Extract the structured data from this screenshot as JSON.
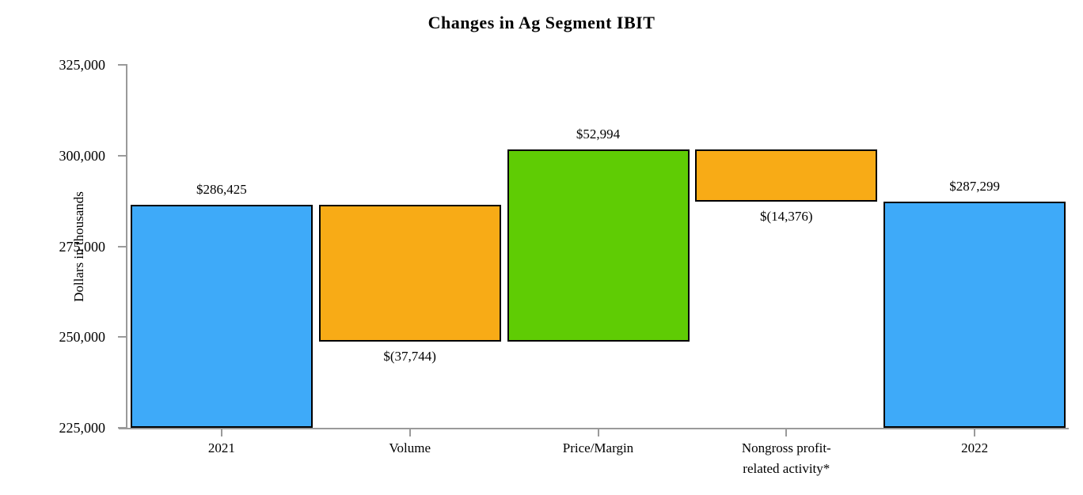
{
  "chart_data": {
    "type": "bar",
    "subtype": "waterfall",
    "title": "Changes in Ag Segment IBIT",
    "ylabel": "Dollars in thousands",
    "xlabel": "",
    "ylim": [
      225000,
      325000
    ],
    "grid": false,
    "legend": null,
    "axis_color": "#9a9a9a",
    "bar_border_color": "#000000",
    "yticks": [
      {
        "value": 225000,
        "label": "225,000"
      },
      {
        "value": 250000,
        "label": "250,000"
      },
      {
        "value": 275000,
        "label": "275,000"
      },
      {
        "value": 300000,
        "label": "300,000"
      },
      {
        "value": 325000,
        "label": "325,000"
      }
    ],
    "bars": [
      {
        "category": "2021",
        "value": 286425,
        "value_label": "$286,425",
        "start": 225000,
        "end": 286425,
        "color": "#3EAAF9",
        "label_position": "above"
      },
      {
        "category": "Volume",
        "value": -37744,
        "value_label": "$(37,744)",
        "start": 248681,
        "end": 286425,
        "color": "#F8AB16",
        "label_position": "below"
      },
      {
        "category": "Price/Margin",
        "value": 52994,
        "value_label": "$52,994",
        "start": 248681,
        "end": 301675,
        "color": "#5FCC04",
        "label_position": "above"
      },
      {
        "category": "Nongross profit-\nrelated activity*",
        "value": -14376,
        "value_label": "$(14,376)",
        "start": 287299,
        "end": 301675,
        "color": "#F8AB16",
        "label_position": "below"
      },
      {
        "category": "2022",
        "value": 287299,
        "value_label": "$287,299",
        "start": 225000,
        "end": 287299,
        "color": "#3EAAF9",
        "label_position": "above"
      }
    ]
  }
}
